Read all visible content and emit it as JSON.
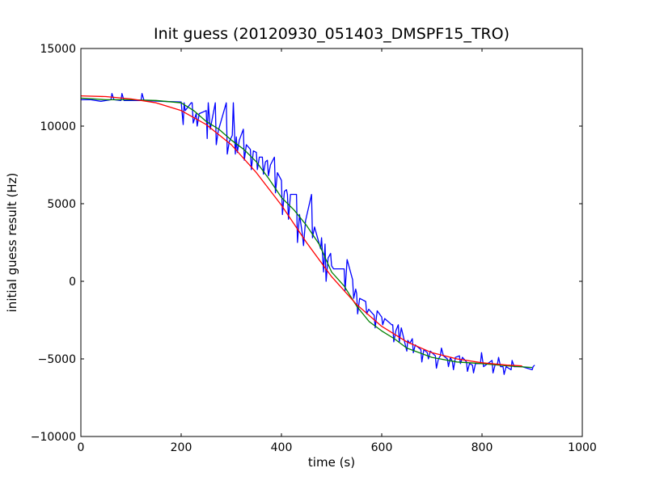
{
  "chart_data": {
    "type": "line",
    "title": "Init guess (20120930_051403_DMSPF15_TRO)",
    "xlabel": "time (s)",
    "ylabel": "initial guess result (Hz)",
    "xlim": [
      0,
      1000
    ],
    "ylim": [
      -10000,
      15000
    ],
    "xticks": [
      0,
      200,
      400,
      600,
      800,
      1000
    ],
    "yticks": [
      -10000,
      -5000,
      0,
      5000,
      10000,
      15000
    ],
    "grid": false,
    "series": [
      {
        "color": "#0000ff",
        "x": [
          0,
          20,
          40,
          60,
          62,
          66,
          80,
          82,
          86,
          100,
          120,
          122,
          126,
          160,
          200,
          204,
          206,
          208,
          220,
          222,
          224,
          230,
          232,
          236,
          250,
          252,
          254,
          258,
          268,
          270,
          274,
          290,
          292,
          296,
          302,
          304,
          308,
          310,
          312,
          316,
          324,
          326,
          330,
          338,
          340,
          344,
          350,
          352,
          356,
          362,
          364,
          368,
          372,
          374,
          378,
          386,
          388,
          392,
          400,
          402,
          406,
          410,
          412,
          414,
          418,
          430,
          432,
          436,
          442,
          444,
          448,
          460,
          462,
          466,
          478,
          480,
          484,
          487,
          489,
          493,
          498,
          500,
          504,
          525,
          527,
          531,
          542,
          544,
          548,
          550,
          552,
          556,
          568,
          570,
          574,
          585,
          587,
          591,
          600,
          602,
          606,
          620,
          622,
          624,
          628,
          633,
          635,
          639,
          650,
          652,
          656,
          661,
          663,
          667,
          678,
          680,
          684,
          691,
          693,
          697,
          707,
          709,
          713,
          717,
          719,
          723,
          731,
          733,
          737,
          741,
          743,
          747,
          755,
          757,
          761,
          769,
          771,
          775,
          781,
          783,
          787,
          797,
          799,
          803,
          820,
          822,
          826,
          831,
          833,
          837,
          842,
          844,
          848,
          858,
          860,
          864,
          880,
          900,
          902,
          905
        ],
        "y": [
          11700,
          11700,
          11600,
          11700,
          12100,
          11700,
          11650,
          12100,
          11650,
          11650,
          11650,
          12100,
          11650,
          11600,
          11550,
          10100,
          11500,
          11000,
          11500,
          11500,
          10200,
          10800,
          10000,
          10800,
          11000,
          9200,
          11500,
          9800,
          11500,
          8800,
          9700,
          11500,
          8200,
          9000,
          9400,
          11500,
          8200,
          9300,
          8300,
          9100,
          9800,
          7800,
          8800,
          8500,
          7200,
          8400,
          8300,
          7200,
          8000,
          8000,
          6900,
          7700,
          7800,
          6800,
          7500,
          8000,
          5700,
          7000,
          6500,
          4300,
          5800,
          5900,
          5600,
          4000,
          5600,
          5600,
          2500,
          4300,
          3000,
          2300,
          3900,
          5600,
          2800,
          3500,
          2100,
          2800,
          600,
          2400,
          0,
          1500,
          1800,
          1000,
          800,
          800,
          -600,
          1400,
          100,
          -1100,
          -500,
          -800,
          -2100,
          -1100,
          -1300,
          -2100,
          -1800,
          -2200,
          -3000,
          -1900,
          -2300,
          -2800,
          -2400,
          -2800,
          -2800,
          -3900,
          -3200,
          -2800,
          -3900,
          -3000,
          -4500,
          -3800,
          -4000,
          -3700,
          -4600,
          -4100,
          -4400,
          -5200,
          -4400,
          -4600,
          -5000,
          -4500,
          -4800,
          -5600,
          -5000,
          -4800,
          -4300,
          -4800,
          -5000,
          -5500,
          -4900,
          -5200,
          -5700,
          -4900,
          -4800,
          -5300,
          -4900,
          -5200,
          -5800,
          -5300,
          -5400,
          -5900,
          -5300,
          -5300,
          -4600,
          -5500,
          -5100,
          -5900,
          -5400,
          -5300,
          -4900,
          -5500,
          -5500,
          -6000,
          -5500,
          -5700,
          -5100,
          -5500,
          -5500,
          -5700,
          -5500,
          -5400
        ]
      },
      {
        "color": "#008000",
        "x": [
          0,
          50,
          100,
          150,
          200,
          225,
          250,
          275,
          300,
          325,
          350,
          375,
          400,
          425,
          450,
          475,
          500,
          525,
          550,
          575,
          600,
          625,
          650,
          700,
          750,
          800,
          850,
          900
        ],
        "y": [
          11800,
          11700,
          11700,
          11650,
          11500,
          11000,
          10300,
          9800,
          9100,
          8500,
          7700,
          6600,
          5400,
          4600,
          3600,
          2400,
          600,
          -300,
          -1600,
          -2600,
          -3200,
          -3700,
          -4300,
          -4900,
          -5200,
          -5300,
          -5450,
          -5550
        ]
      },
      {
        "color": "#ff0000",
        "x": [
          0,
          50,
          100,
          150,
          200,
          250,
          300,
          350,
          400,
          450,
          500,
          550,
          600,
          650,
          700,
          750,
          800,
          850,
          880
        ],
        "y": [
          11950,
          11900,
          11750,
          11500,
          11000,
          10100,
          8800,
          7000,
          4900,
          2500,
          300,
          -1500,
          -2900,
          -3900,
          -4600,
          -5000,
          -5250,
          -5400,
          -5450
        ]
      }
    ]
  }
}
